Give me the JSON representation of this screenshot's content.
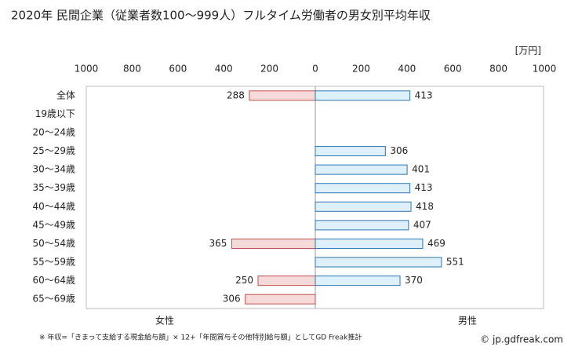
{
  "chart_data": {
    "type": "butterfly",
    "title": "2020年 民間企業（従業者数100〜999人）フルタイム労働者の男女別平均年収",
    "unit": "[万円]",
    "categories": [
      "全体",
      "19歳以下",
      "20〜24歳",
      "25〜29歳",
      "30〜34歳",
      "35〜39歳",
      "40〜44歳",
      "45〜49歳",
      "50〜54歳",
      "55〜59歳",
      "60〜64歳",
      "65〜69歳"
    ],
    "series": [
      {
        "name": "女性",
        "color": "#f6d9d9",
        "stroke": "#c0504d",
        "label_color": "#b03a3a",
        "side": "left",
        "values": [
          288,
          null,
          null,
          null,
          null,
          null,
          null,
          null,
          365,
          null,
          250,
          306
        ]
      },
      {
        "name": "男性",
        "color": "#ddf0fb",
        "stroke": "#2e75b6",
        "label_color": "#2e86c1",
        "side": "right",
        "values": [
          413,
          null,
          null,
          306,
          401,
          413,
          418,
          407,
          469,
          551,
          370,
          null
        ]
      }
    ],
    "xlim": [
      0,
      1000
    ],
    "xticks": [
      0,
      200,
      400,
      600,
      800,
      1000
    ],
    "footnote": "※ 年収=「きまって支給する現金給与額」× 12+「年間賞与その他特別給与額」としてGD Freak推計",
    "source": "© jp.gdfreak.com"
  }
}
